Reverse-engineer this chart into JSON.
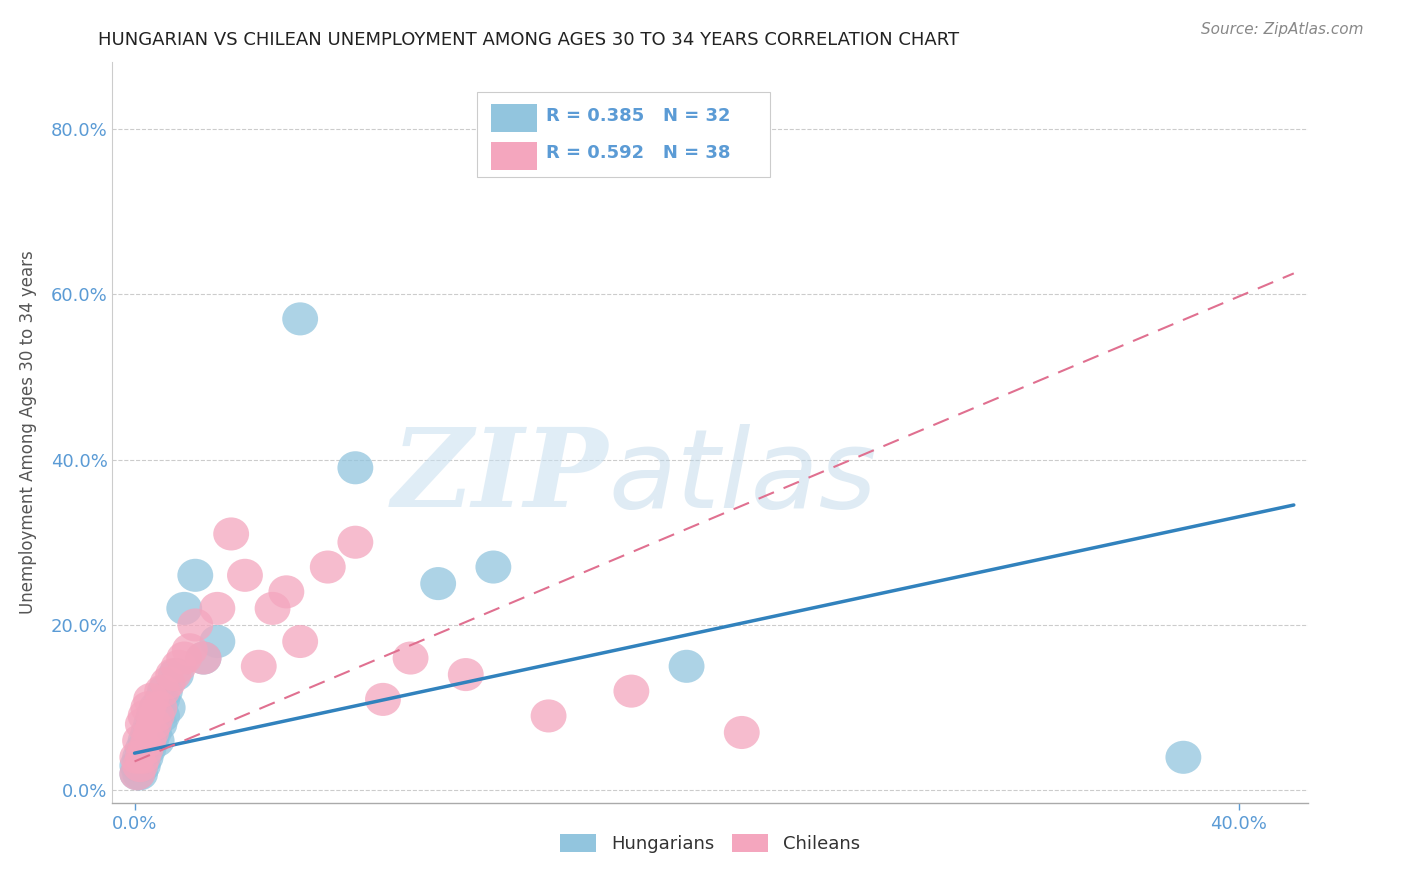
{
  "title": "HUNGARIAN VS CHILEAN UNEMPLOYMENT AMONG AGES 30 TO 34 YEARS CORRELATION CHART",
  "source_text": "Source: ZipAtlas.com",
  "ylabel": "Unemployment Among Ages 30 to 34 years",
  "watermark_zip": "ZIP",
  "watermark_atlas": "atlas",
  "legend_r1": "R = 0.385",
  "legend_n1": "N = 32",
  "legend_r2": "R = 0.592",
  "legend_n2": "N = 38",
  "xlim": [
    -0.008,
    0.425
  ],
  "ylim": [
    -0.015,
    0.88
  ],
  "yticks": [
    0.0,
    0.2,
    0.4,
    0.6,
    0.8
  ],
  "xticks": [
    0.0,
    0.4
  ],
  "color_hungarian": "#92c5de",
  "color_chilean": "#f4a6be",
  "color_line_hungarian": "#3182bd",
  "color_line_chilean": "#e07090",
  "line_h_x0": 0.0,
  "line_h_y0": 0.045,
  "line_h_x1": 0.42,
  "line_h_y1": 0.345,
  "line_c_x0": 0.0,
  "line_c_y0": 0.035,
  "line_c_x1": 0.42,
  "line_c_y1": 0.625,
  "hungarian_x": [
    0.001,
    0.001,
    0.002,
    0.002,
    0.003,
    0.003,
    0.004,
    0.004,
    0.005,
    0.005,
    0.006,
    0.006,
    0.007,
    0.007,
    0.008,
    0.008,
    0.009,
    0.01,
    0.01,
    0.011,
    0.012,
    0.015,
    0.018,
    0.022,
    0.025,
    0.03,
    0.06,
    0.08,
    0.11,
    0.13,
    0.2,
    0.38
  ],
  "hungarian_y": [
    0.02,
    0.03,
    0.02,
    0.04,
    0.03,
    0.05,
    0.04,
    0.06,
    0.05,
    0.07,
    0.06,
    0.08,
    0.07,
    0.09,
    0.06,
    0.1,
    0.08,
    0.09,
    0.11,
    0.12,
    0.1,
    0.14,
    0.22,
    0.26,
    0.16,
    0.18,
    0.57,
    0.39,
    0.25,
    0.27,
    0.15,
    0.04
  ],
  "chilean_x": [
    0.001,
    0.001,
    0.002,
    0.002,
    0.003,
    0.003,
    0.004,
    0.004,
    0.005,
    0.005,
    0.006,
    0.006,
    0.007,
    0.008,
    0.009,
    0.01,
    0.012,
    0.014,
    0.016,
    0.018,
    0.02,
    0.022,
    0.025,
    0.03,
    0.035,
    0.04,
    0.045,
    0.05,
    0.055,
    0.06,
    0.07,
    0.08,
    0.09,
    0.1,
    0.12,
    0.15,
    0.18,
    0.22
  ],
  "chilean_y": [
    0.02,
    0.04,
    0.03,
    0.06,
    0.04,
    0.08,
    0.05,
    0.09,
    0.06,
    0.1,
    0.07,
    0.11,
    0.08,
    0.09,
    0.1,
    0.12,
    0.13,
    0.14,
    0.15,
    0.16,
    0.17,
    0.2,
    0.16,
    0.22,
    0.31,
    0.26,
    0.15,
    0.22,
    0.24,
    0.18,
    0.27,
    0.3,
    0.11,
    0.16,
    0.14,
    0.09,
    0.12,
    0.07
  ],
  "background_color": "#ffffff",
  "grid_color": "#cccccc"
}
